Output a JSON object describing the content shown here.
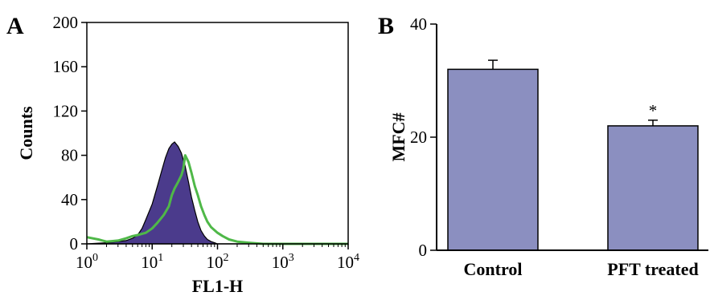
{
  "panels": {
    "a": {
      "letter": "A"
    },
    "b": {
      "letter": "B"
    }
  },
  "chart_data": [
    {
      "type": "area",
      "panel": "A",
      "xlabel": "FL1-H",
      "ylabel": "Counts",
      "xscale": "log",
      "xlim": [
        1,
        10000
      ],
      "ylim": [
        0,
        200
      ],
      "yticks": [
        0,
        40,
        80,
        120,
        160,
        200
      ],
      "xticks": [
        {
          "value": 1,
          "base": "10",
          "exp": "0"
        },
        {
          "value": 10,
          "base": "10",
          "exp": "1"
        },
        {
          "value": 100,
          "base": "10",
          "exp": "2"
        },
        {
          "value": 1000,
          "base": "10",
          "exp": "3"
        },
        {
          "value": 10000,
          "base": "10",
          "exp": "4"
        }
      ],
      "series": [
        {
          "style": "filled",
          "color": "#4b3b8c",
          "x": [
            1,
            2,
            3,
            4,
            5,
            6,
            7,
            8,
            10,
            12,
            14,
            16,
            18,
            20,
            22,
            25,
            28,
            32,
            36,
            40,
            45,
            50,
            56,
            63,
            70,
            80,
            90,
            100,
            120,
            150,
            200,
            500,
            1000,
            10000
          ],
          "y": [
            0,
            1,
            2,
            3,
            5,
            8,
            14,
            22,
            36,
            52,
            66,
            78,
            86,
            90,
            92,
            88,
            82,
            70,
            56,
            42,
            30,
            20,
            12,
            7,
            4,
            2,
            1,
            0,
            0,
            0,
            0,
            0,
            0,
            0
          ]
        },
        {
          "style": "line",
          "color": "#4fb848",
          "x": [
            1,
            1.5,
            2,
            3,
            4,
            5,
            6,
            8,
            10,
            12,
            15,
            18,
            20,
            22,
            25,
            28,
            30,
            32,
            36,
            40,
            45,
            50,
            56,
            63,
            70,
            80,
            100,
            120,
            150,
            200,
            300,
            500,
            1000,
            10000
          ],
          "y": [
            6,
            4,
            2,
            3,
            5,
            7,
            8,
            10,
            14,
            19,
            26,
            34,
            44,
            50,
            56,
            62,
            68,
            80,
            74,
            64,
            52,
            44,
            34,
            26,
            20,
            15,
            10,
            7,
            4,
            2,
            1,
            0,
            0,
            0
          ]
        }
      ]
    },
    {
      "type": "bar",
      "panel": "B",
      "categories": [
        "Control",
        "PFT treated"
      ],
      "values": [
        32,
        22
      ],
      "errors": [
        1.6,
        1.0
      ],
      "ylabel": "MFC#",
      "ylim": [
        0,
        40
      ],
      "yticks": [
        0,
        20,
        40
      ],
      "color": "#8b8fc0",
      "annotations": [
        {
          "category": "PFT treated",
          "text": "*"
        }
      ]
    }
  ]
}
